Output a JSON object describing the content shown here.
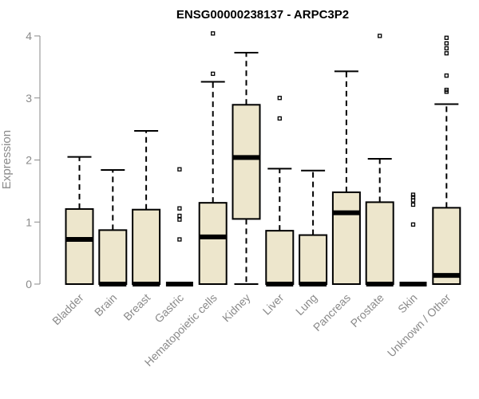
{
  "chart_data": {
    "type": "box",
    "title": "ENSG00000238137 - ARPC3P2",
    "xlabel": "",
    "ylabel": "Expression",
    "ylim": [
      0,
      4
    ],
    "yticks": [
      0,
      1,
      2,
      3,
      4
    ],
    "box_fill": "#ede6cc",
    "box_stroke": "#000000",
    "categories": [
      "Bladder",
      "Brain",
      "Breast",
      "Gastric",
      "Hematopoietic cells",
      "Kidney",
      "Liver",
      "Lung",
      "Pancreas",
      "Prostate",
      "Skin",
      "Unknown / Other"
    ],
    "boxes": [
      {
        "category": "Bladder",
        "min": 0,
        "q1": 0,
        "median": 0.72,
        "q3": 1.21,
        "max": 2.05,
        "outliers": []
      },
      {
        "category": "Brain",
        "min": 0,
        "q1": 0,
        "median": 0,
        "q3": 0.87,
        "max": 1.84,
        "outliers": []
      },
      {
        "category": "Breast",
        "min": 0,
        "q1": 0,
        "median": 0,
        "q3": 1.2,
        "max": 2.47,
        "outliers": []
      },
      {
        "category": "Gastric",
        "min": 0,
        "q1": 0,
        "median": 0,
        "q3": 0,
        "max": 0,
        "outliers": [
          1.85,
          1.22,
          1.1,
          1.04,
          0.72
        ]
      },
      {
        "category": "Hematopoietic cells",
        "min": 0,
        "q1": 0,
        "median": 0.76,
        "q3": 1.31,
        "max": 3.26,
        "outliers": [
          4.04,
          3.39
        ]
      },
      {
        "category": "Kidney",
        "min": 0,
        "q1": 1.05,
        "median": 2.04,
        "q3": 2.89,
        "max": 3.73,
        "outliers": []
      },
      {
        "category": "Liver",
        "min": 0,
        "q1": 0,
        "median": 0,
        "q3": 0.86,
        "max": 1.86,
        "outliers": [
          3.0,
          2.67
        ]
      },
      {
        "category": "Lung",
        "min": 0,
        "q1": 0,
        "median": 0,
        "q3": 0.79,
        "max": 1.83,
        "outliers": []
      },
      {
        "category": "Pancreas",
        "min": 0,
        "q1": 0,
        "median": 1.15,
        "q3": 1.48,
        "max": 3.43,
        "outliers": []
      },
      {
        "category": "Prostate",
        "min": 0,
        "q1": 0,
        "median": 0,
        "q3": 1.32,
        "max": 2.02,
        "outliers": [
          4.0
        ]
      },
      {
        "category": "Skin",
        "min": 0,
        "q1": 0,
        "median": 0,
        "q3": 0,
        "max": 0,
        "outliers": [
          1.44,
          1.4,
          1.35,
          1.28,
          0.96
        ]
      },
      {
        "category": "Unknown / Other",
        "min": 0,
        "q1": 0,
        "median": 0.14,
        "q3": 1.23,
        "max": 2.9,
        "outliers": [
          3.97,
          3.88,
          3.8,
          3.72,
          3.36,
          3.13,
          3.1
        ]
      }
    ]
  }
}
